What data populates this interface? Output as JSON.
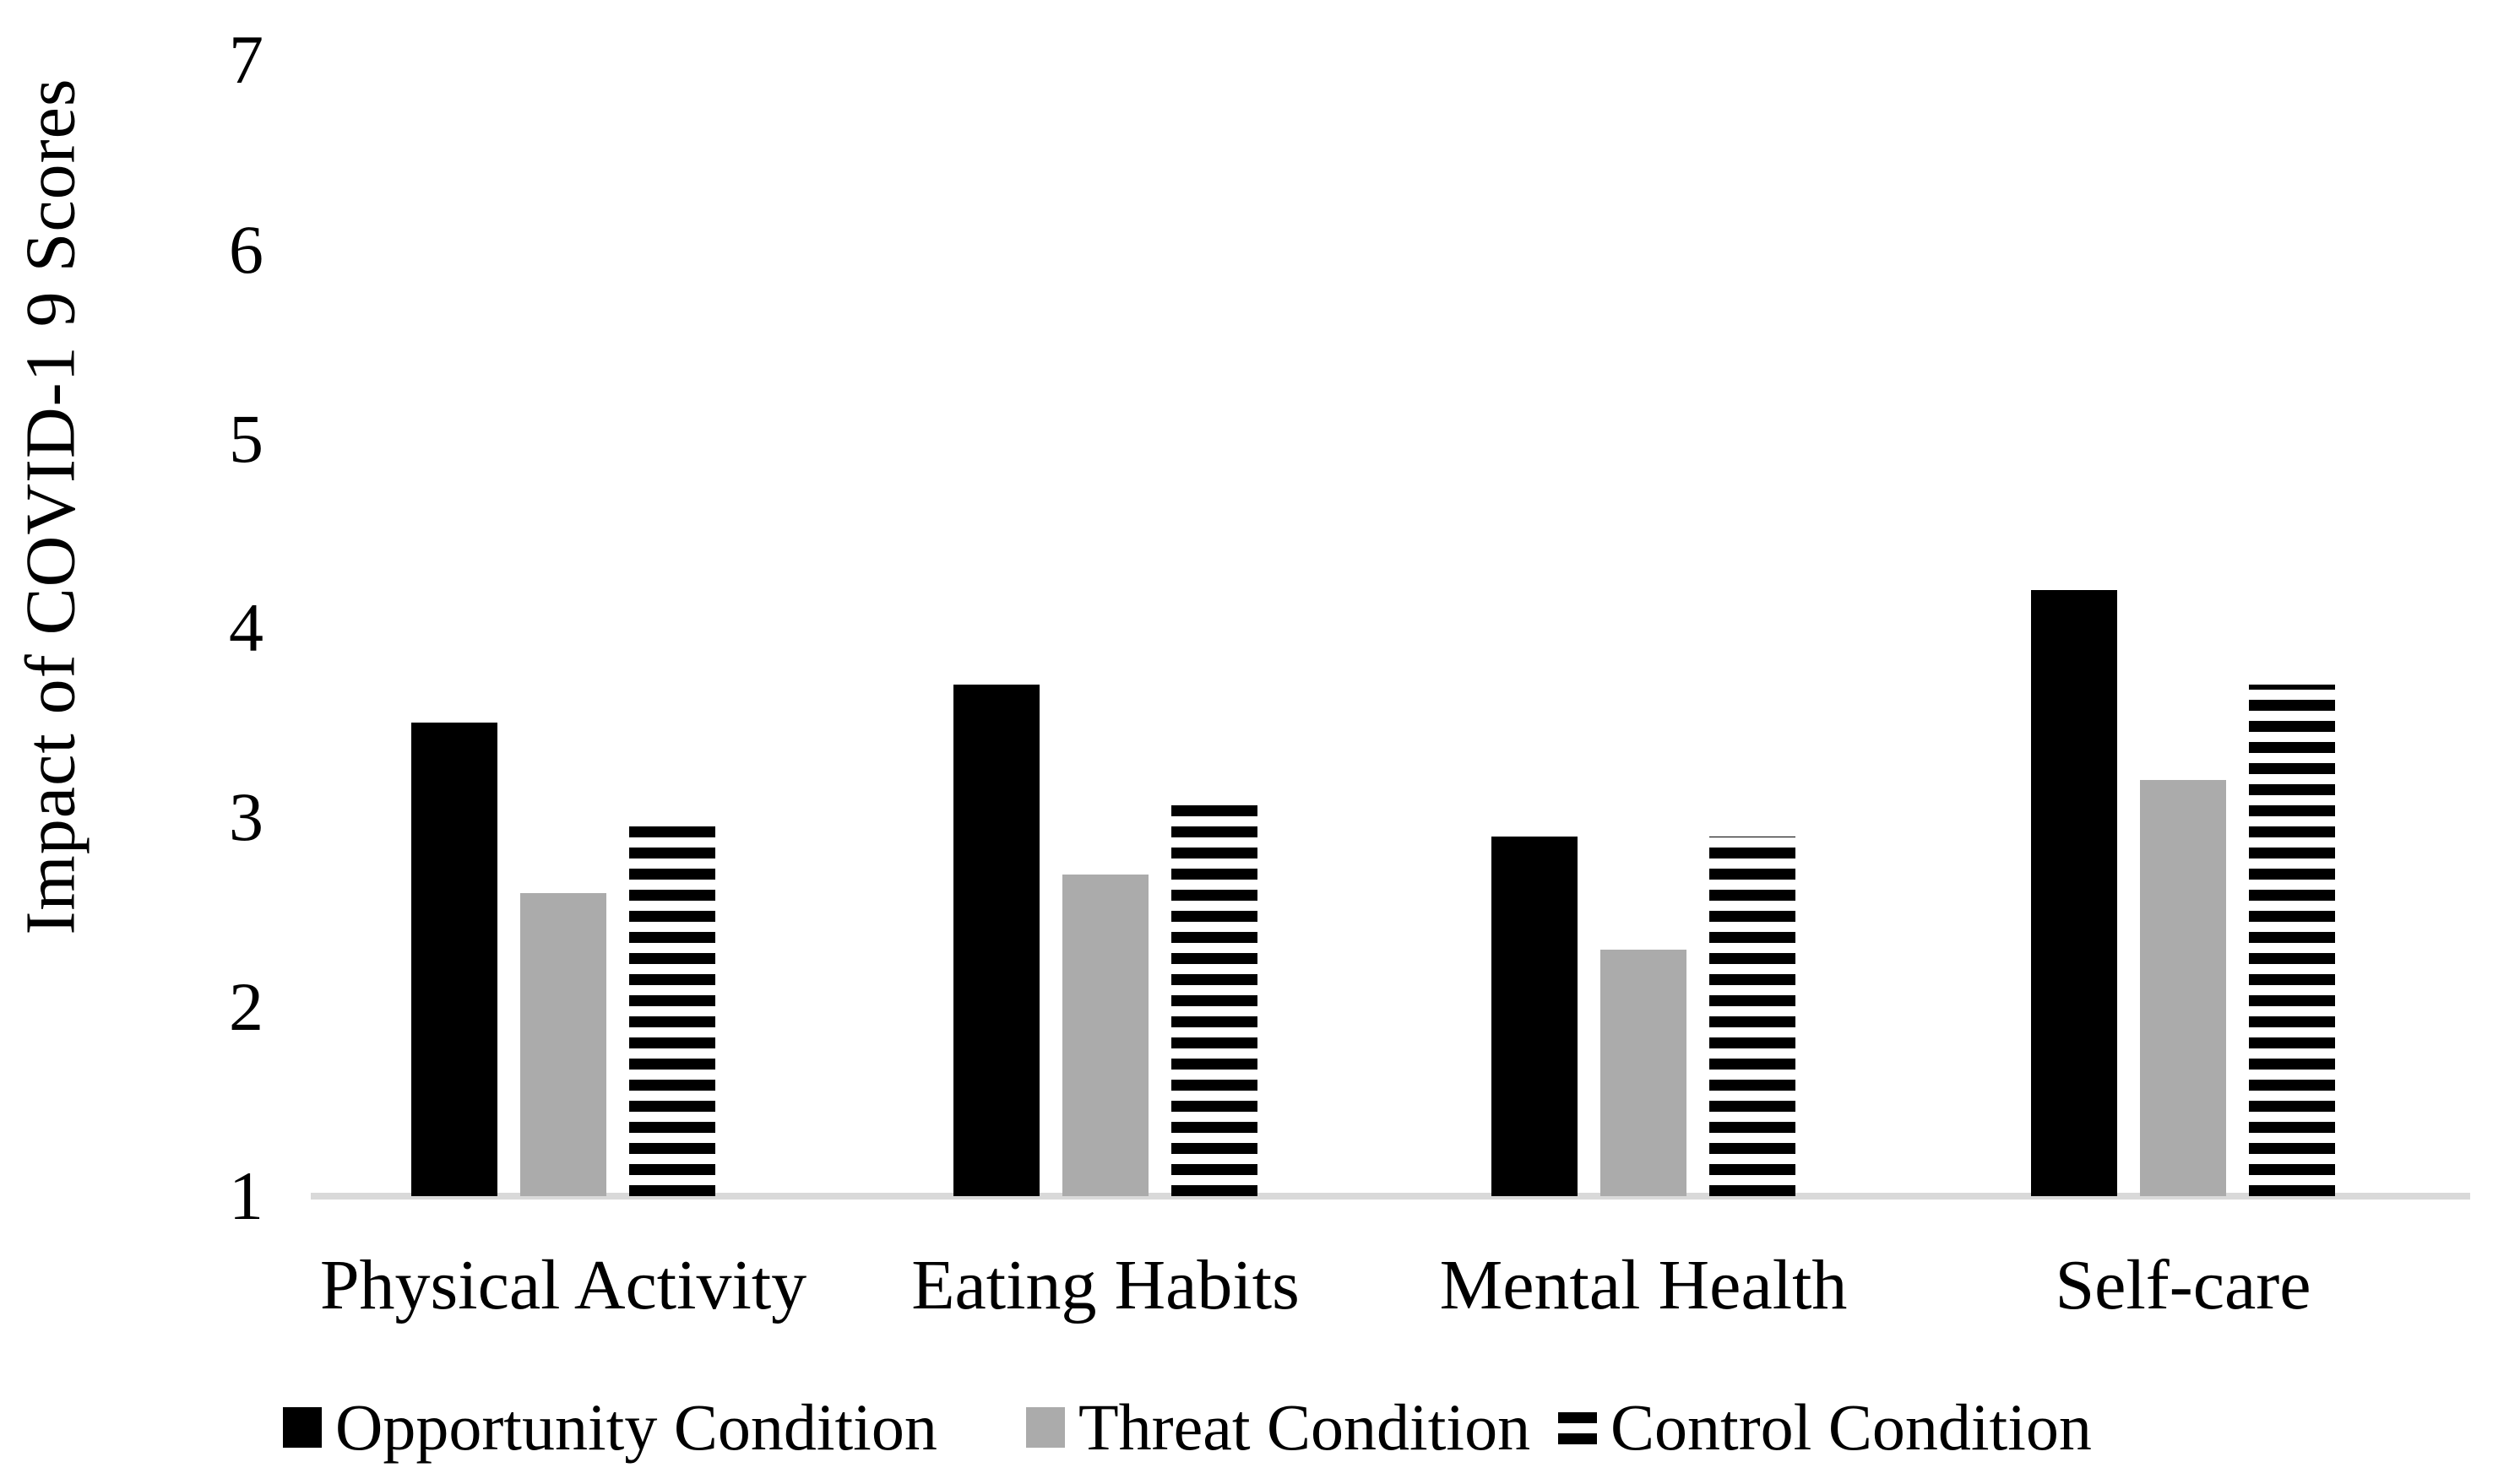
{
  "chart_data": {
    "type": "bar",
    "title": "",
    "ylabel": "Impact of COVID-1 9 Scores",
    "xlabel": "",
    "categories": [
      "Physical Activity",
      "Eating Habits",
      "Mental Health",
      "Self-care"
    ],
    "series": [
      {
        "name": "Opportunity Condition",
        "style": "solid-black",
        "color": "#000000",
        "values": [
          3.5,
          3.7,
          2.9,
          4.2
        ]
      },
      {
        "name": "Threat Condition",
        "style": "solid-gray",
        "color": "#ababab",
        "values": [
          2.6,
          2.7,
          2.3,
          3.2
        ]
      },
      {
        "name": "Control Condition",
        "style": "h-stripes",
        "color": "#000000",
        "values": [
          3.0,
          3.1,
          2.9,
          3.7
        ]
      }
    ],
    "y_ticks": [
      7,
      6,
      5,
      4,
      3,
      2,
      1
    ],
    "ylim": [
      1,
      7
    ],
    "grid": false,
    "axis_line_color": "#d9d9d9",
    "legend_position": "bottom"
  }
}
